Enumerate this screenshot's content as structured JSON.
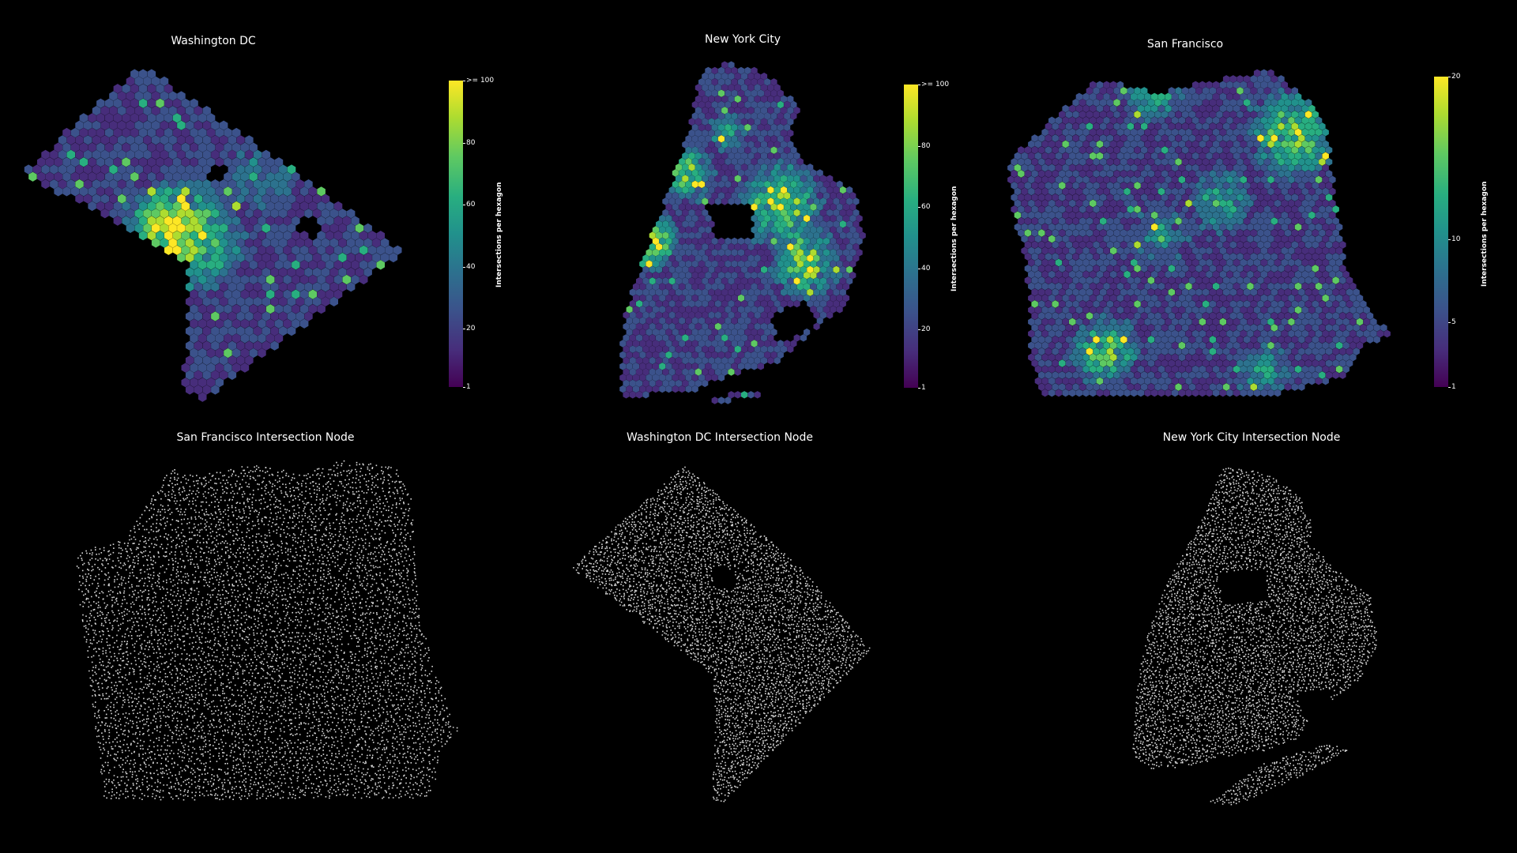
{
  "panels": [
    {
      "id": "dc-hex",
      "title": "Washington DC",
      "kind": "hexbin",
      "colorbar": {
        "label": "Intersections per hexagon",
        "ticks": [
          "1",
          "20",
          "40",
          "60",
          "80",
          ">= 100"
        ]
      }
    },
    {
      "id": "nyc-hex",
      "title": "New York City",
      "kind": "hexbin",
      "colorbar": {
        "label": "Intersections per hexagon",
        "ticks": [
          "1",
          "20",
          "40",
          "60",
          "80",
          ">= 100"
        ]
      }
    },
    {
      "id": "sf-hex",
      "title": "San Francisco",
      "kind": "hexbin",
      "colorbar": {
        "label": "Intersections per hexagon",
        "ticks": [
          "1",
          "5",
          "10",
          "20"
        ]
      }
    },
    {
      "id": "sf-nodes",
      "title": "San Francisco Intersection Node",
      "kind": "nodes"
    },
    {
      "id": "dc-nodes",
      "title": "Washington DC Intersection Node",
      "kind": "nodes"
    },
    {
      "id": "nyc-nodes",
      "title": "New York City Intersection Node",
      "kind": "nodes"
    }
  ],
  "colors": {
    "background": "#000000",
    "viridis": [
      "#440154",
      "#472d7b",
      "#3b528b",
      "#2c728e",
      "#21918c",
      "#28ae80",
      "#5ec962",
      "#addc30",
      "#fde725"
    ],
    "node": "#d9d9d9"
  }
}
